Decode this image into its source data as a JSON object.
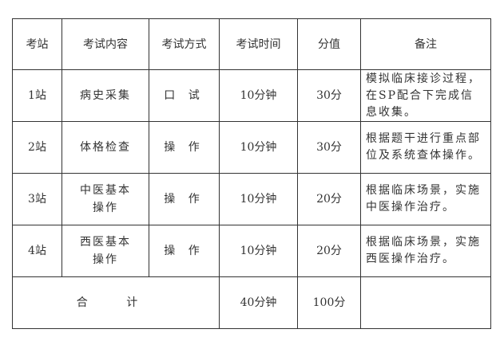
{
  "table": {
    "headers": [
      "考站",
      "考试内容",
      "考试方式",
      "考试时间",
      "分值",
      "备注"
    ],
    "rows": [
      {
        "station": "1站",
        "content": "病史采集",
        "method": "口 试",
        "time": "10分钟",
        "score": "30分",
        "note": "模拟临床接诊过程，在SP配合下完成信息收集。"
      },
      {
        "station": "2站",
        "content": "体格检查",
        "method": "操 作",
        "time": "10分钟",
        "score": "30分",
        "note": "根据题干进行重点部位及系统查体操作。"
      },
      {
        "station": "3站",
        "content": "中医基本操作",
        "method": "操 作",
        "time": "10分钟",
        "score": "20分",
        "note": "根据临床场景，实施中医操作治疗。"
      },
      {
        "station": "4站",
        "content": "西医基本操作",
        "method": "操 作",
        "time": "10分钟",
        "score": "20分",
        "note": "根据临床场景，实施西医操作治疗。"
      }
    ],
    "total": {
      "label": "合 计",
      "time": "40分钟",
      "score": "100分",
      "note": ""
    }
  }
}
